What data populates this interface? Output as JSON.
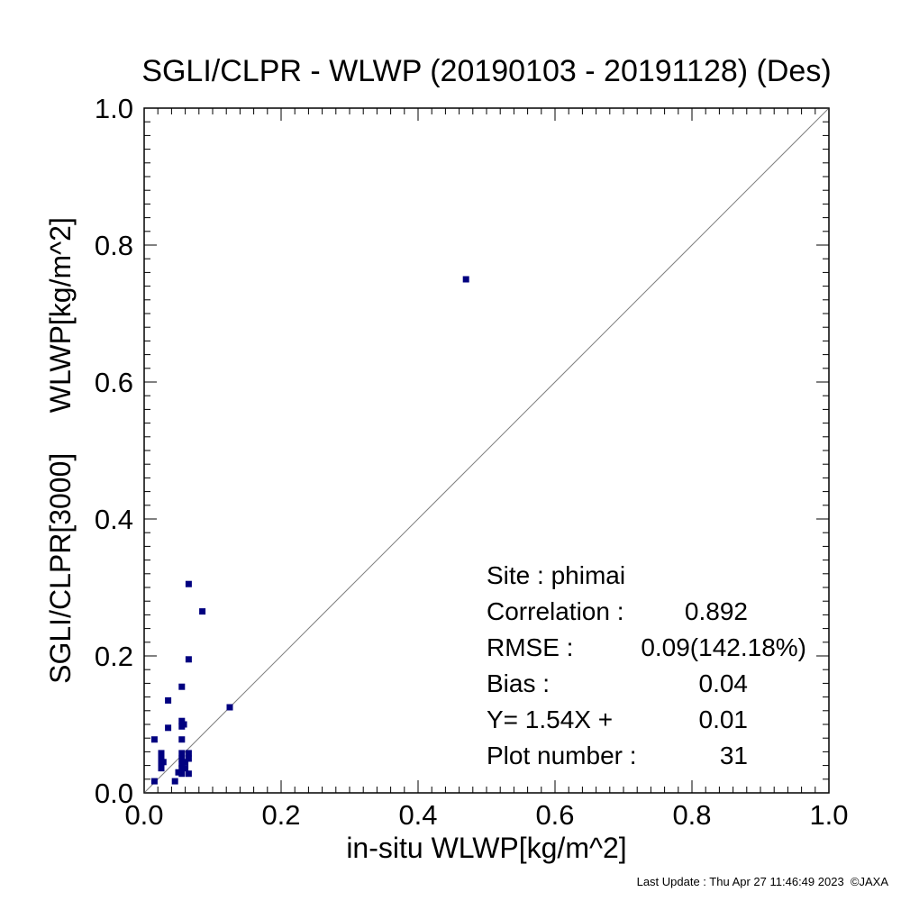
{
  "chart_data": {
    "type": "scatter",
    "title": "SGLI/CLPR - WLWP (20190103 - 20191128) (Des)",
    "xlabel": "in-situ WLWP[kg/m^2]",
    "ylabel": "SGLI/CLPR[3000]     WLWP[kg/m^2]",
    "xlim": [
      0.0,
      1.0
    ],
    "ylim": [
      0.0,
      1.0
    ],
    "x_ticks": [
      "0.0",
      "0.2",
      "0.4",
      "0.6",
      "0.8",
      "1.0"
    ],
    "y_ticks": [
      "0.0",
      "0.2",
      "0.4",
      "0.6",
      "0.8",
      "1.0"
    ],
    "reference_line": "y = x",
    "marker_color": "#000080",
    "line_color": "#7f7f7f",
    "points": [
      {
        "x": 0.47,
        "y": 0.75
      },
      {
        "x": 0.065,
        "y": 0.305
      },
      {
        "x": 0.085,
        "y": 0.265
      },
      {
        "x": 0.065,
        "y": 0.195
      },
      {
        "x": 0.055,
        "y": 0.155
      },
      {
        "x": 0.035,
        "y": 0.135
      },
      {
        "x": 0.125,
        "y": 0.125
      },
      {
        "x": 0.055,
        "y": 0.105
      },
      {
        "x": 0.055,
        "y": 0.097
      },
      {
        "x": 0.035,
        "y": 0.095
      },
      {
        "x": 0.015,
        "y": 0.078
      },
      {
        "x": 0.055,
        "y": 0.078
      },
      {
        "x": 0.025,
        "y": 0.058
      },
      {
        "x": 0.055,
        "y": 0.058
      },
      {
        "x": 0.065,
        "y": 0.058
      },
      {
        "x": 0.025,
        "y": 0.05
      },
      {
        "x": 0.055,
        "y": 0.05
      },
      {
        "x": 0.065,
        "y": 0.05
      },
      {
        "x": 0.025,
        "y": 0.042
      },
      {
        "x": 0.055,
        "y": 0.042
      },
      {
        "x": 0.025,
        "y": 0.036
      },
      {
        "x": 0.055,
        "y": 0.036
      },
      {
        "x": 0.06,
        "y": 0.036
      },
      {
        "x": 0.055,
        "y": 0.028
      },
      {
        "x": 0.065,
        "y": 0.028
      },
      {
        "x": 0.015,
        "y": 0.017
      },
      {
        "x": 0.045,
        "y": 0.017
      },
      {
        "x": 0.06,
        "y": 0.045
      },
      {
        "x": 0.05,
        "y": 0.03
      },
      {
        "x": 0.028,
        "y": 0.045
      },
      {
        "x": 0.058,
        "y": 0.1
      }
    ],
    "stats": [
      {
        "label": "Site : phimai",
        "value": ""
      },
      {
        "label": "Correlation :",
        "value": "0.892"
      },
      {
        "label": "RMSE :",
        "value": "0.09(142.18%)"
      },
      {
        "label": "Bias :",
        "value": "0.04"
      },
      {
        "label": "Y=   1.54X +",
        "value": "0.01"
      },
      {
        "label": "Plot number :",
        "value": "31"
      }
    ]
  },
  "footer": "Last Update : Thu Apr 27 11:46:49 2023  ©JAXA"
}
